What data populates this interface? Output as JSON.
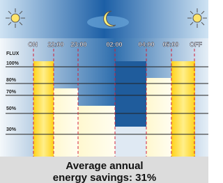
{
  "time_labels": [
    "ON",
    "22:00",
    "23:00",
    "02:00",
    "04:00",
    "05:00",
    "OFF"
  ],
  "axis_label": "FLUX",
  "level_labels": [
    "100%",
    "80%",
    "70%",
    "50%",
    "30%"
  ],
  "caption": {
    "line1": "Average annual",
    "line2": "energy savings: 31%"
  }
}
